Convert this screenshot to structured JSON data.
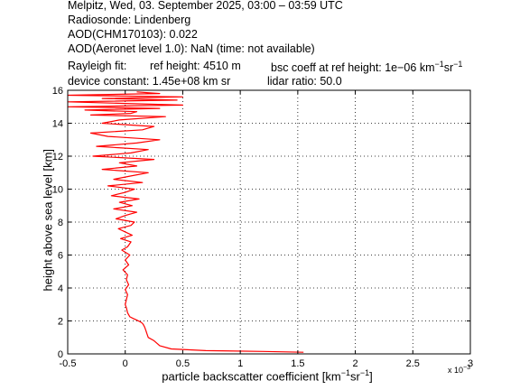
{
  "header": {
    "line1": "Melpitz, Wed, 03. September 2025, 03:00 – 03:59 UTC",
    "line2": "Radiosonde: Lindenberg",
    "line3": "AOD(CHM170103): 0.022",
    "line4": "AOD(Aeronet level 1.0): NaN   (time: not available)",
    "rayleigh_label": "Rayleigh fit:",
    "ref_height": "ref height: 4510 m",
    "bsc_coeff_prefix": "bsc coeff at ref height: 1e−06 km",
    "unit_exp1": "−1",
    "sr": "sr",
    "unit_exp2": "−1",
    "device_constant": "device constant: 1.45e+08 km sr",
    "lidar_ratio": "lidar ratio: 50.0"
  },
  "axes": {
    "xlabel_prefix": "particle backscatter coefficient [km",
    "xlabel_exp1": "−1",
    "xlabel_mid": "sr",
    "xlabel_exp2": "−1",
    "xlabel_suffix": "]",
    "ylabel": "height above sea level [km]",
    "x_multiplier_base": "x 10",
    "x_multiplier_exp": "−3"
  },
  "chart_data": {
    "type": "line",
    "xlim": [
      -0.5,
      3
    ],
    "ylim": [
      0,
      16
    ],
    "xticks": [
      -0.5,
      0,
      0.5,
      1,
      1.5,
      2,
      2.5,
      3
    ],
    "xtick_labels": [
      "-0.5",
      "0",
      "0.5",
      "1",
      "1.5",
      "2",
      "2.5",
      "3"
    ],
    "yticks": [
      0,
      2,
      4,
      6,
      8,
      10,
      12,
      14,
      16
    ],
    "ytick_labels": [
      "0",
      "2",
      "4",
      "6",
      "8",
      "10",
      "12",
      "14",
      "16"
    ],
    "x_scale_factor": "1e-3",
    "grid": true,
    "grid_style": "dotted",
    "line_color": "#ff0000",
    "series": [
      {
        "x": [
          1.55,
          1.2,
          0.7,
          0.4,
          0.3,
          0.25,
          0.2,
          0.19,
          0.18,
          0.17,
          0.16,
          0.15,
          0.13,
          0.1,
          0.07,
          0.04,
          0.02,
          0.01,
          0.0,
          0.01,
          0.02,
          0.0,
          0.03,
          0.01,
          0.02,
          -0.02,
          0.03,
          0.0,
          0.04,
          -0.03,
          0.02,
          0.05,
          -0.04,
          0.06,
          0.0,
          -0.06,
          0.05,
          0.08,
          -0.08,
          0.0,
          0.1,
          -0.1,
          0.06,
          -0.05,
          0.12,
          -0.12,
          0.0,
          0.08,
          -0.15,
          0.15,
          -0.1,
          0.05,
          0.2,
          -0.2,
          0.1,
          -0.05,
          0.25,
          -0.28,
          0.05,
          0.2,
          -0.25,
          0.1,
          0.3,
          -0.15,
          -0.3,
          0.15,
          0.25,
          -0.2,
          -0.05,
          0.35,
          -0.3,
          0.05,
          0.1,
          -0.35,
          0.3,
          -0.5,
          0.5,
          0.0,
          -0.5,
          0.45,
          -0.2,
          0.5,
          -0.5,
          0.3,
          0.1
        ],
        "y": [
          0.1,
          0.15,
          0.2,
          0.3,
          0.5,
          0.8,
          1.0,
          1.2,
          1.4,
          1.6,
          1.75,
          1.85,
          1.95,
          2.05,
          2.15,
          2.25,
          2.5,
          2.8,
          3.0,
          3.3,
          3.6,
          3.9,
          4.2,
          4.5,
          4.8,
          5.1,
          5.4,
          5.7,
          6.0,
          6.3,
          6.5,
          6.8,
          7.0,
          7.2,
          7.4,
          7.6,
          7.8,
          8.0,
          8.2,
          8.4,
          8.6,
          8.8,
          9.0,
          9.2,
          9.4,
          9.6,
          9.8,
          10.0,
          10.2,
          10.4,
          10.6,
          10.8,
          11.0,
          11.2,
          11.4,
          11.6,
          11.8,
          12.0,
          12.2,
          12.4,
          12.6,
          12.8,
          13.0,
          13.2,
          13.4,
          13.6,
          13.8,
          14.0,
          14.2,
          14.4,
          14.5,
          14.6,
          14.7,
          14.8,
          14.9,
          15.0,
          15.1,
          15.2,
          15.3,
          15.4,
          15.5,
          15.6,
          15.7,
          15.8,
          15.9
        ]
      }
    ]
  }
}
